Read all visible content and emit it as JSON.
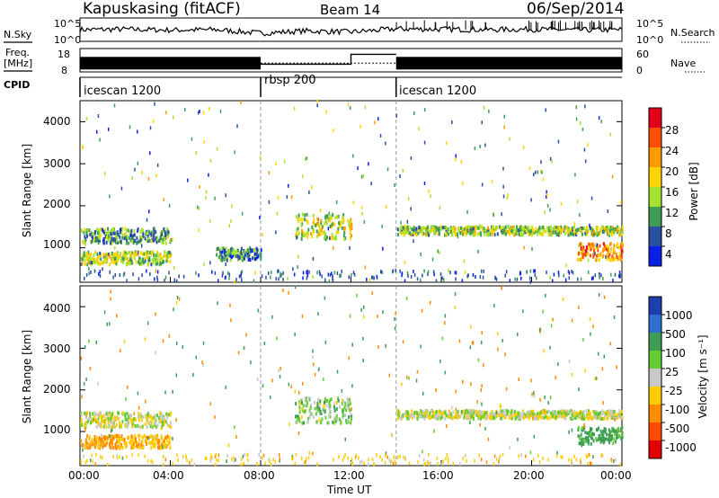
{
  "header": {
    "station": "Kapuskasing (fitACF)",
    "beam": "Beam 14",
    "date": "06/Sep/2014"
  },
  "strips": {
    "nsky_label": "N.Sky",
    "nsky_ticks": [
      "10^5",
      "10^0"
    ],
    "nsearch_label": "N.Search",
    "freq_label_1": "Freq.",
    "freq_label_2": "[MHz]",
    "freq_ticks": [
      "18",
      "8"
    ],
    "nave_ticks": [
      "60",
      "0"
    ],
    "nave_label": "Nave",
    "cpid_label": "CPID",
    "cpid_segments": [
      {
        "name": "icescan 1200",
        "start": 0,
        "end": 8
      },
      {
        "name": "rbsp 200",
        "start": 8,
        "end": 14
      },
      {
        "name": "icescan 1200",
        "start": 14,
        "end": 24
      }
    ]
  },
  "x_axis": {
    "title": "Time UT",
    "ticks": [
      "00:00",
      "04:00",
      "08:00",
      "12:00",
      "16:00",
      "20:00",
      "00:00"
    ]
  },
  "y_axis": {
    "title": "Slant Range [km]",
    "ticks": [
      "1000",
      "2000",
      "3000",
      "4000"
    ]
  },
  "power_scale": {
    "title": "Power [dB]",
    "labels": [
      "28",
      "24",
      "20",
      "16",
      "12",
      "8",
      "4"
    ],
    "colors": [
      "#e3001b",
      "#ff4e00",
      "#ff9a00",
      "#ffd400",
      "#a6e32f",
      "#3d9e54",
      "#2a4fa3",
      "#0a1fe6"
    ]
  },
  "velocity_scale": {
    "title": "Velocity [m s⁻¹]",
    "labels": [
      "1000",
      "500",
      "100",
      "25",
      "-25",
      "-100",
      "-500",
      "-1000"
    ],
    "colors": [
      "#1f3fb0",
      "#2f6ed0",
      "#3d9e54",
      "#66cc33",
      "#c8c8c8",
      "#ffcc00",
      "#ff8c00",
      "#ff4a00",
      "#e30000"
    ]
  },
  "chart_data": [
    {
      "type": "line",
      "name_label": "N.Sky",
      "x_unit": "hours UT",
      "x": [
        0,
        2,
        4,
        6,
        8,
        10,
        12,
        14,
        16,
        18,
        20,
        22,
        24
      ],
      "y_log10": [
        2.5,
        2.6,
        2.4,
        2.5,
        1.6,
        2.2,
        1.9,
        2.7,
        2.6,
        2.5,
        2.6,
        2.4,
        2.5
      ],
      "ylim_log10": [
        0,
        5
      ]
    },
    {
      "type": "line",
      "name_label": "Freq. [MHz]",
      "x_unit": "hours UT",
      "segments": [
        {
          "x": [
            0,
            8
          ],
          "y": 11.5
        },
        {
          "x": [
            8,
            14
          ],
          "y": 11.5
        },
        {
          "x": [
            14,
            24
          ],
          "y": 11.5
        }
      ],
      "ylim": [
        8,
        18
      ]
    },
    {
      "type": "line",
      "name_label": "Nave",
      "x_unit": "hours UT",
      "x": [
        8,
        12,
        12,
        14
      ],
      "y": [
        18,
        18,
        48,
        48
      ],
      "ylim": [
        0,
        60
      ]
    },
    {
      "type": "heatmap",
      "title": "Power [dB]",
      "xlabel": "Time UT",
      "ylabel": "Slant Range [km]",
      "xlim_hours": [
        0,
        24
      ],
      "ylim_km": [
        180,
        4500
      ],
      "echo_bands": [
        {
          "t": [
            0,
            4
          ],
          "range_km": [
            600,
            900
          ],
          "power_db": 14
        },
        {
          "t": [
            0,
            4
          ],
          "range_km": [
            1100,
            1450
          ],
          "power_db": 10
        },
        {
          "t": [
            6,
            8
          ],
          "range_km": [
            700,
            1000
          ],
          "power_db": 9
        },
        {
          "t": [
            9.5,
            12
          ],
          "range_km": [
            1200,
            1800
          ],
          "power_db": 16
        },
        {
          "t": [
            14,
            24
          ],
          "range_km": [
            1300,
            1500
          ],
          "power_db": 14
        },
        {
          "t": [
            22,
            24
          ],
          "range_km": [
            700,
            1100
          ],
          "power_db": 22
        }
      ]
    },
    {
      "type": "heatmap",
      "title": "Velocity [m s⁻¹]",
      "xlabel": "Time UT",
      "ylabel": "Slant Range [km]",
      "xlim_hours": [
        0,
        24
      ],
      "ylim_km": [
        180,
        4500
      ],
      "echo_bands": [
        {
          "t": [
            0,
            4
          ],
          "range_km": [
            600,
            900
          ],
          "velocity": -100
        },
        {
          "t": [
            0,
            4
          ],
          "range_km": [
            1100,
            1450
          ],
          "velocity": 0
        },
        {
          "t": [
            9.5,
            12
          ],
          "range_km": [
            1200,
            1800
          ],
          "velocity": 50
        },
        {
          "t": [
            14,
            24
          ],
          "range_km": [
            1300,
            1500
          ],
          "velocity": 0
        },
        {
          "t": [
            22,
            24
          ],
          "range_km": [
            700,
            1100
          ],
          "velocity": 150
        }
      ]
    }
  ]
}
